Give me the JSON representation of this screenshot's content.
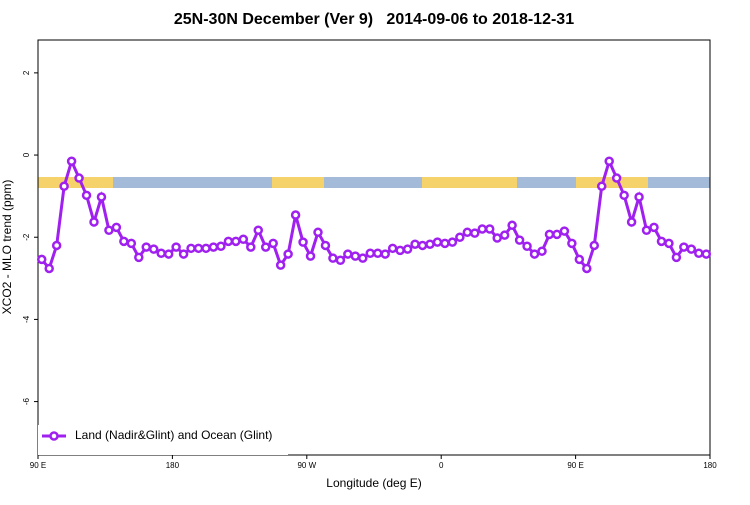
{
  "chart_data": {
    "type": "line",
    "title": "25N-30N December (Ver 9)   2014-09-06 to 2018-12-31",
    "xlabel": "Longitude (deg E)",
    "ylabel": "XCO2 - MLO trend (ppm)",
    "xlim": [
      90,
      540
    ],
    "xticks": [
      {
        "value": 90,
        "label": "90 E"
      },
      {
        "value": 180,
        "label": "180"
      },
      {
        "value": 270,
        "label": "90 W"
      },
      {
        "value": 360,
        "label": "0"
      },
      {
        "value": 450,
        "label": "90 E"
      },
      {
        "value": 540,
        "label": "180"
      }
    ],
    "ylim": [
      -7.3,
      2.8
    ],
    "yticks": [
      2,
      0,
      -2,
      -4,
      -6
    ],
    "legend_position": "bottom-left",
    "x": [
      92.5,
      97.5,
      102.5,
      107.5,
      112.5,
      117.5,
      122.5,
      127.5,
      132.5,
      137.5,
      142.5,
      147.5,
      152.5,
      157.5,
      162.5,
      167.5,
      172.5,
      177.5,
      182.5,
      187.5,
      192.5,
      197.5,
      202.5,
      207.5,
      212.5,
      217.5,
      222.5,
      227.5,
      232.5,
      237.5,
      242.5,
      247.5,
      252.5,
      257.5,
      262.5,
      267.5,
      272.5,
      277.5,
      282.5,
      287.5,
      292.5,
      297.5,
      302.5,
      307.5,
      312.5,
      317.5,
      322.5,
      327.5,
      332.5,
      337.5,
      342.5,
      347.5,
      352.5,
      357.5,
      362.5,
      367.5,
      372.5,
      377.5,
      382.5,
      387.5,
      392.5,
      397.5,
      402.5,
      407.5,
      412.5,
      417.5,
      422.5,
      427.5,
      432.5,
      437.5,
      442.5,
      447.5,
      452.5,
      457.5,
      462.5,
      467.5,
      472.5,
      477.5,
      482.5,
      487.5,
      492.5,
      497.5,
      502.5,
      507.5,
      512.5,
      517.5,
      522.5,
      527.5,
      532.5,
      537.5
    ],
    "series": [
      {
        "name": "Land (Nadir&Glint) and Ocean (Glint)",
        "color": "#a020f0",
        "values": [
          -2.54,
          -2.76,
          -2.2,
          -0.76,
          -0.15,
          -0.56,
          -0.98,
          -1.63,
          -1.02,
          -1.83,
          -1.76,
          -2.1,
          -2.15,
          -2.49,
          -2.24,
          -2.29,
          -2.39,
          -2.41,
          -2.24,
          -2.41,
          -2.27,
          -2.27,
          -2.27,
          -2.24,
          -2.22,
          -2.1,
          -2.1,
          -2.05,
          -2.24,
          -1.83,
          -2.24,
          -2.15,
          -2.68,
          -2.41,
          -1.46,
          -2.12,
          -2.46,
          -1.88,
          -2.2,
          -2.51,
          -2.56,
          -2.41,
          -2.46,
          -2.51,
          -2.39,
          -2.39,
          -2.41,
          -2.27,
          -2.32,
          -2.29,
          -2.17,
          -2.2,
          -2.17,
          -2.12,
          -2.15,
          -2.12,
          -2.0,
          -1.88,
          -1.9,
          -1.8,
          -1.8,
          -2.02,
          -1.95,
          -1.71,
          -2.07,
          -2.22,
          -2.41,
          -2.34,
          -1.93,
          -1.93,
          -1.85,
          -2.15,
          -2.54,
          -2.76,
          -2.2,
          -0.76,
          -0.15,
          -0.56,
          -0.98,
          -1.63,
          -1.02,
          -1.83,
          -1.76,
          -2.1,
          -2.15,
          -2.49,
          -2.24,
          -2.29,
          -2.39,
          -2.41
        ]
      }
    ]
  }
}
